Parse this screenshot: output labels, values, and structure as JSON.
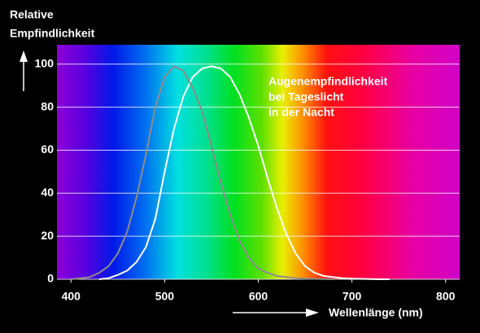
{
  "chart_data": {
    "type": "line",
    "ylabel": [
      "Relative",
      "Empfindlichkeit"
    ],
    "xlabel": "Wellenlänge (nm)",
    "legend_title": "Augenempfindlichkeit",
    "x": [
      400,
      410,
      420,
      430,
      440,
      450,
      460,
      470,
      480,
      490,
      500,
      510,
      520,
      530,
      540,
      550,
      560,
      570,
      580,
      590,
      600,
      610,
      620,
      630,
      640,
      650,
      660,
      670,
      680,
      690,
      700,
      710,
      720,
      730,
      740
    ],
    "series": [
      {
        "name": "bei Tageslicht",
        "color": "#ffffff",
        "values": [
          null,
          null,
          null,
          0,
          0.5,
          2,
          4,
          8,
          15,
          28,
          50,
          70,
          85,
          94,
          98,
          99,
          98,
          94,
          86,
          75,
          62,
          47,
          33,
          21,
          12,
          6,
          3,
          1.5,
          1,
          0.5,
          0.3,
          0.2,
          0.1,
          0,
          0
        ]
      },
      {
        "name": "in der Nacht",
        "color": "#8c8c8c",
        "values": [
          0,
          0.5,
          1,
          3,
          6,
          12,
          22,
          38,
          58,
          80,
          94,
          99,
          97,
          89,
          78,
          62,
          45,
          30,
          18,
          10,
          5,
          3,
          1.5,
          1,
          0.5,
          0.3,
          0.2,
          0.1,
          0,
          null,
          null,
          null,
          null,
          null,
          null
        ]
      }
    ],
    "xlim": [
      385,
      815
    ],
    "ylim": [
      0,
      109
    ],
    "xticks": [
      400,
      500,
      600,
      700,
      800
    ],
    "yticks": [
      0,
      20,
      40,
      60,
      80,
      100
    ],
    "grid": true
  }
}
